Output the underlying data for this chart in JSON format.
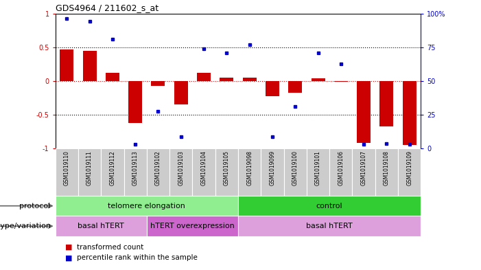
{
  "title": "GDS4964 / 211602_s_at",
  "samples": [
    "GSM1019110",
    "GSM1019111",
    "GSM1019112",
    "GSM1019113",
    "GSM1019102",
    "GSM1019103",
    "GSM1019104",
    "GSM1019105",
    "GSM1019098",
    "GSM1019099",
    "GSM1019100",
    "GSM1019101",
    "GSM1019106",
    "GSM1019107",
    "GSM1019108",
    "GSM1019109"
  ],
  "bar_values": [
    0.47,
    0.45,
    0.12,
    -0.62,
    -0.07,
    -0.35,
    0.12,
    0.05,
    0.05,
    -0.22,
    -0.17,
    0.04,
    -0.01,
    -0.92,
    -0.67,
    -0.95
  ],
  "dot_values": [
    0.93,
    0.88,
    0.62,
    -0.94,
    -0.45,
    -0.83,
    0.48,
    0.42,
    0.54,
    -0.83,
    -0.38,
    0.42,
    0.25,
    -0.94,
    -0.93,
    -0.94
  ],
  "ylim": [
    -1,
    1
  ],
  "yticks": [
    -1,
    -0.5,
    0,
    0.5,
    1
  ],
  "ytick_labels": [
    "-1",
    "-0.5",
    "0",
    "0.5",
    "1"
  ],
  "right_yticks": [
    0,
    25,
    50,
    75,
    100
  ],
  "right_ytick_labels": [
    "0",
    "25",
    "50",
    "75",
    "100%"
  ],
  "bar_color": "#cc0000",
  "dot_color": "#0000cc",
  "protocol_colors": [
    "#90EE90",
    "#32CD32"
  ],
  "protocol_labels": [
    "telomere elongation",
    "control"
  ],
  "protocol_starts": [
    0,
    8
  ],
  "protocol_ends": [
    7,
    15
  ],
  "genotype_colors": [
    "#DDA0DD",
    "#CC66CC",
    "#DDA0DD"
  ],
  "genotype_labels": [
    "basal hTERT",
    "hTERT overexpression",
    "basal hTERT"
  ],
  "genotype_starts": [
    0,
    4,
    8
  ],
  "genotype_ends": [
    3,
    7,
    15
  ],
  "legend_bar_label": "transformed count",
  "legend_dot_label": "percentile rank within the sample",
  "xlabel_protocol": "protocol",
  "xlabel_genotype": "genotype/variation",
  "bg_color": "#ffffff",
  "cell_bg_color": "#cccccc"
}
